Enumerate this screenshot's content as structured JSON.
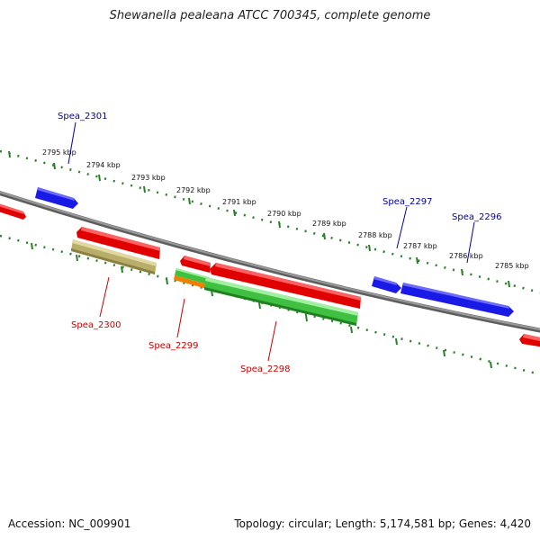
{
  "title": "Shewanella pealeana ATCC 700345, complete genome",
  "footer": {
    "accession": "Accession: NC_009901",
    "summary": "Topology: circular; Length: 5,174,581 bp; Genes: 4,420"
  },
  "colors": {
    "backbone": "#808080",
    "tick": "#2a7f2a",
    "forward_gene": "#1010e0",
    "reverse_gene": "#e00000",
    "label_forward": "#0000aa",
    "label_reverse": "#cc0000",
    "cds_olive": "#b8ae6a",
    "cds_green": "#40c040",
    "cds_orange": "#f08000"
  },
  "scale_labels": [
    "2795 kbp",
    "2794 kbp",
    "2793 kbp",
    "2792 kbp",
    "2791 kbp",
    "2790 kbp",
    "2789 kbp",
    "2788 kbp",
    "2787 kbp",
    "2786 kbp",
    "2785 kbp"
  ],
  "gene_labels": {
    "spea_2301": "Spea_2301",
    "spea_2300": "Spea_2300",
    "spea_2299": "Spea_2299",
    "spea_2298": "Spea_2298",
    "spea_2297": "Spea_2297",
    "spea_2296": "Spea_2296"
  }
}
